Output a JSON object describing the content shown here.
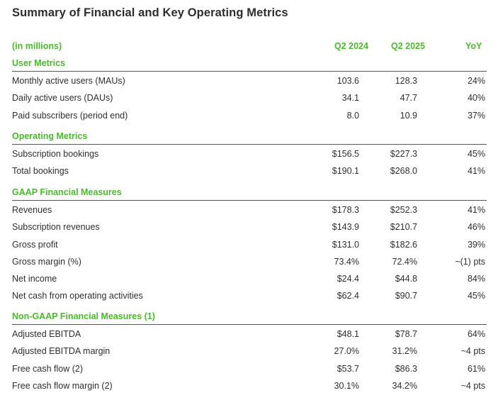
{
  "title": "Summary of Financial and Key Operating Metrics",
  "header": {
    "units": "(in millions)",
    "col1": "Q2 2024",
    "col2": "Q2 2025",
    "col3": "YoY"
  },
  "sections": [
    {
      "title": "User Metrics",
      "rows": [
        {
          "label": "Monthly active users (MAUs)",
          "v1": "103.6",
          "v2": "128.3",
          "v3": "24%"
        },
        {
          "label": "Daily active users (DAUs)",
          "v1": "34.1",
          "v2": "47.7",
          "v3": "40%"
        },
        {
          "label": "Paid subscribers (period end)",
          "v1": "8.0",
          "v2": "10.9",
          "v3": "37%"
        }
      ]
    },
    {
      "title": "Operating Metrics",
      "rows": [
        {
          "label": "Subscription bookings",
          "v1": "$156.5",
          "v2": "$227.3",
          "v3": "45%"
        },
        {
          "label": "Total bookings",
          "v1": "$190.1",
          "v2": "$268.0",
          "v3": "41%"
        }
      ]
    },
    {
      "title": "GAAP Financial Measures",
      "rows": [
        {
          "label": "Revenues",
          "v1": "$178.3",
          "v2": "$252.3",
          "v3": "41%"
        },
        {
          "label": "Subscription revenues",
          "v1": "$143.9",
          "v2": "$210.7",
          "v3": "46%"
        },
        {
          "label": "Gross profit",
          "v1": "$131.0",
          "v2": "$182.6",
          "v3": "39%"
        },
        {
          "label": "Gross margin (%)",
          "v1": "73.4%",
          "v2": "72.4%",
          "v3": "~(1) pts"
        },
        {
          "label": "Net income",
          "v1": "$24.4",
          "v2": "$44.8",
          "v3": "84%"
        },
        {
          "label": "Net cash from operating activities",
          "v1": "$62.4",
          "v2": "$90.7",
          "v3": "45%"
        }
      ]
    },
    {
      "title": "Non-GAAP Financial Measures (1)",
      "rows": [
        {
          "label": "Adjusted EBITDA",
          "v1": "$48.1",
          "v2": "$78.7",
          "v3": "64%"
        },
        {
          "label": "Adjusted EBITDA margin",
          "v1": "27.0%",
          "v2": "31.2%",
          "v3": "~4 pts"
        },
        {
          "label": "Free cash flow (2)",
          "v1": "$53.7",
          "v2": "$86.3",
          "v3": "61%"
        },
        {
          "label": "Free cash flow margin (2)",
          "v1": "30.1%",
          "v2": "34.2%",
          "v3": "~4 pts"
        }
      ]
    }
  ]
}
